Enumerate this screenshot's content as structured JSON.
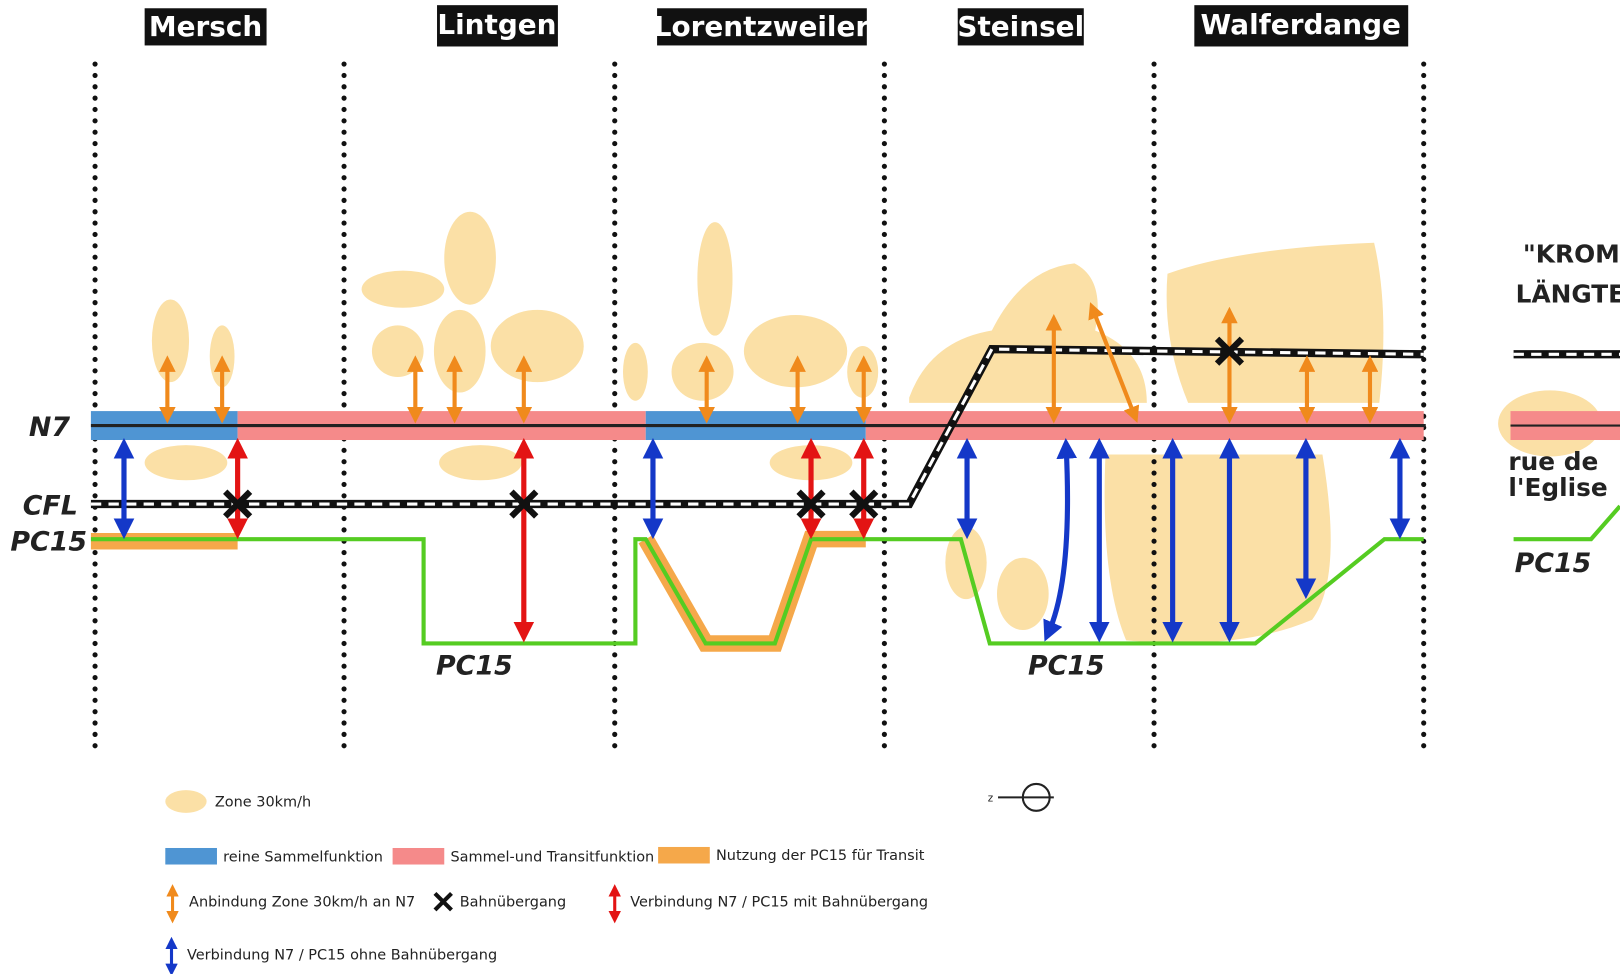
{
  "communes": [
    "Mersch",
    "Lintgen",
    "Lorentzweiler",
    "Steinsel",
    "Walferdange"
  ],
  "lines": {
    "n7": "N7",
    "cfl": "CFL",
    "pc15": "PC15"
  },
  "pc15_labels": [
    "PC15",
    "PC15",
    "PC15"
  ],
  "side": {
    "title_1": "\"KROM",
    "title_2": "LÄNGTE",
    "street": [
      "rue de",
      "l'Eglise"
    ]
  },
  "legend": [
    "Zone 30km/h",
    "reine Sammelfunktion",
    "Sammel-und Transitfunktion",
    "Nutzung der PC15 für Transit",
    "Anbindung Zone 30km/h an N7",
    "Bahnübergang",
    "Verbindung N7 / PC15 mit Bahnübergang",
    "Verbindung N7 / PC15 ohne Bahnübergang"
  ]
}
